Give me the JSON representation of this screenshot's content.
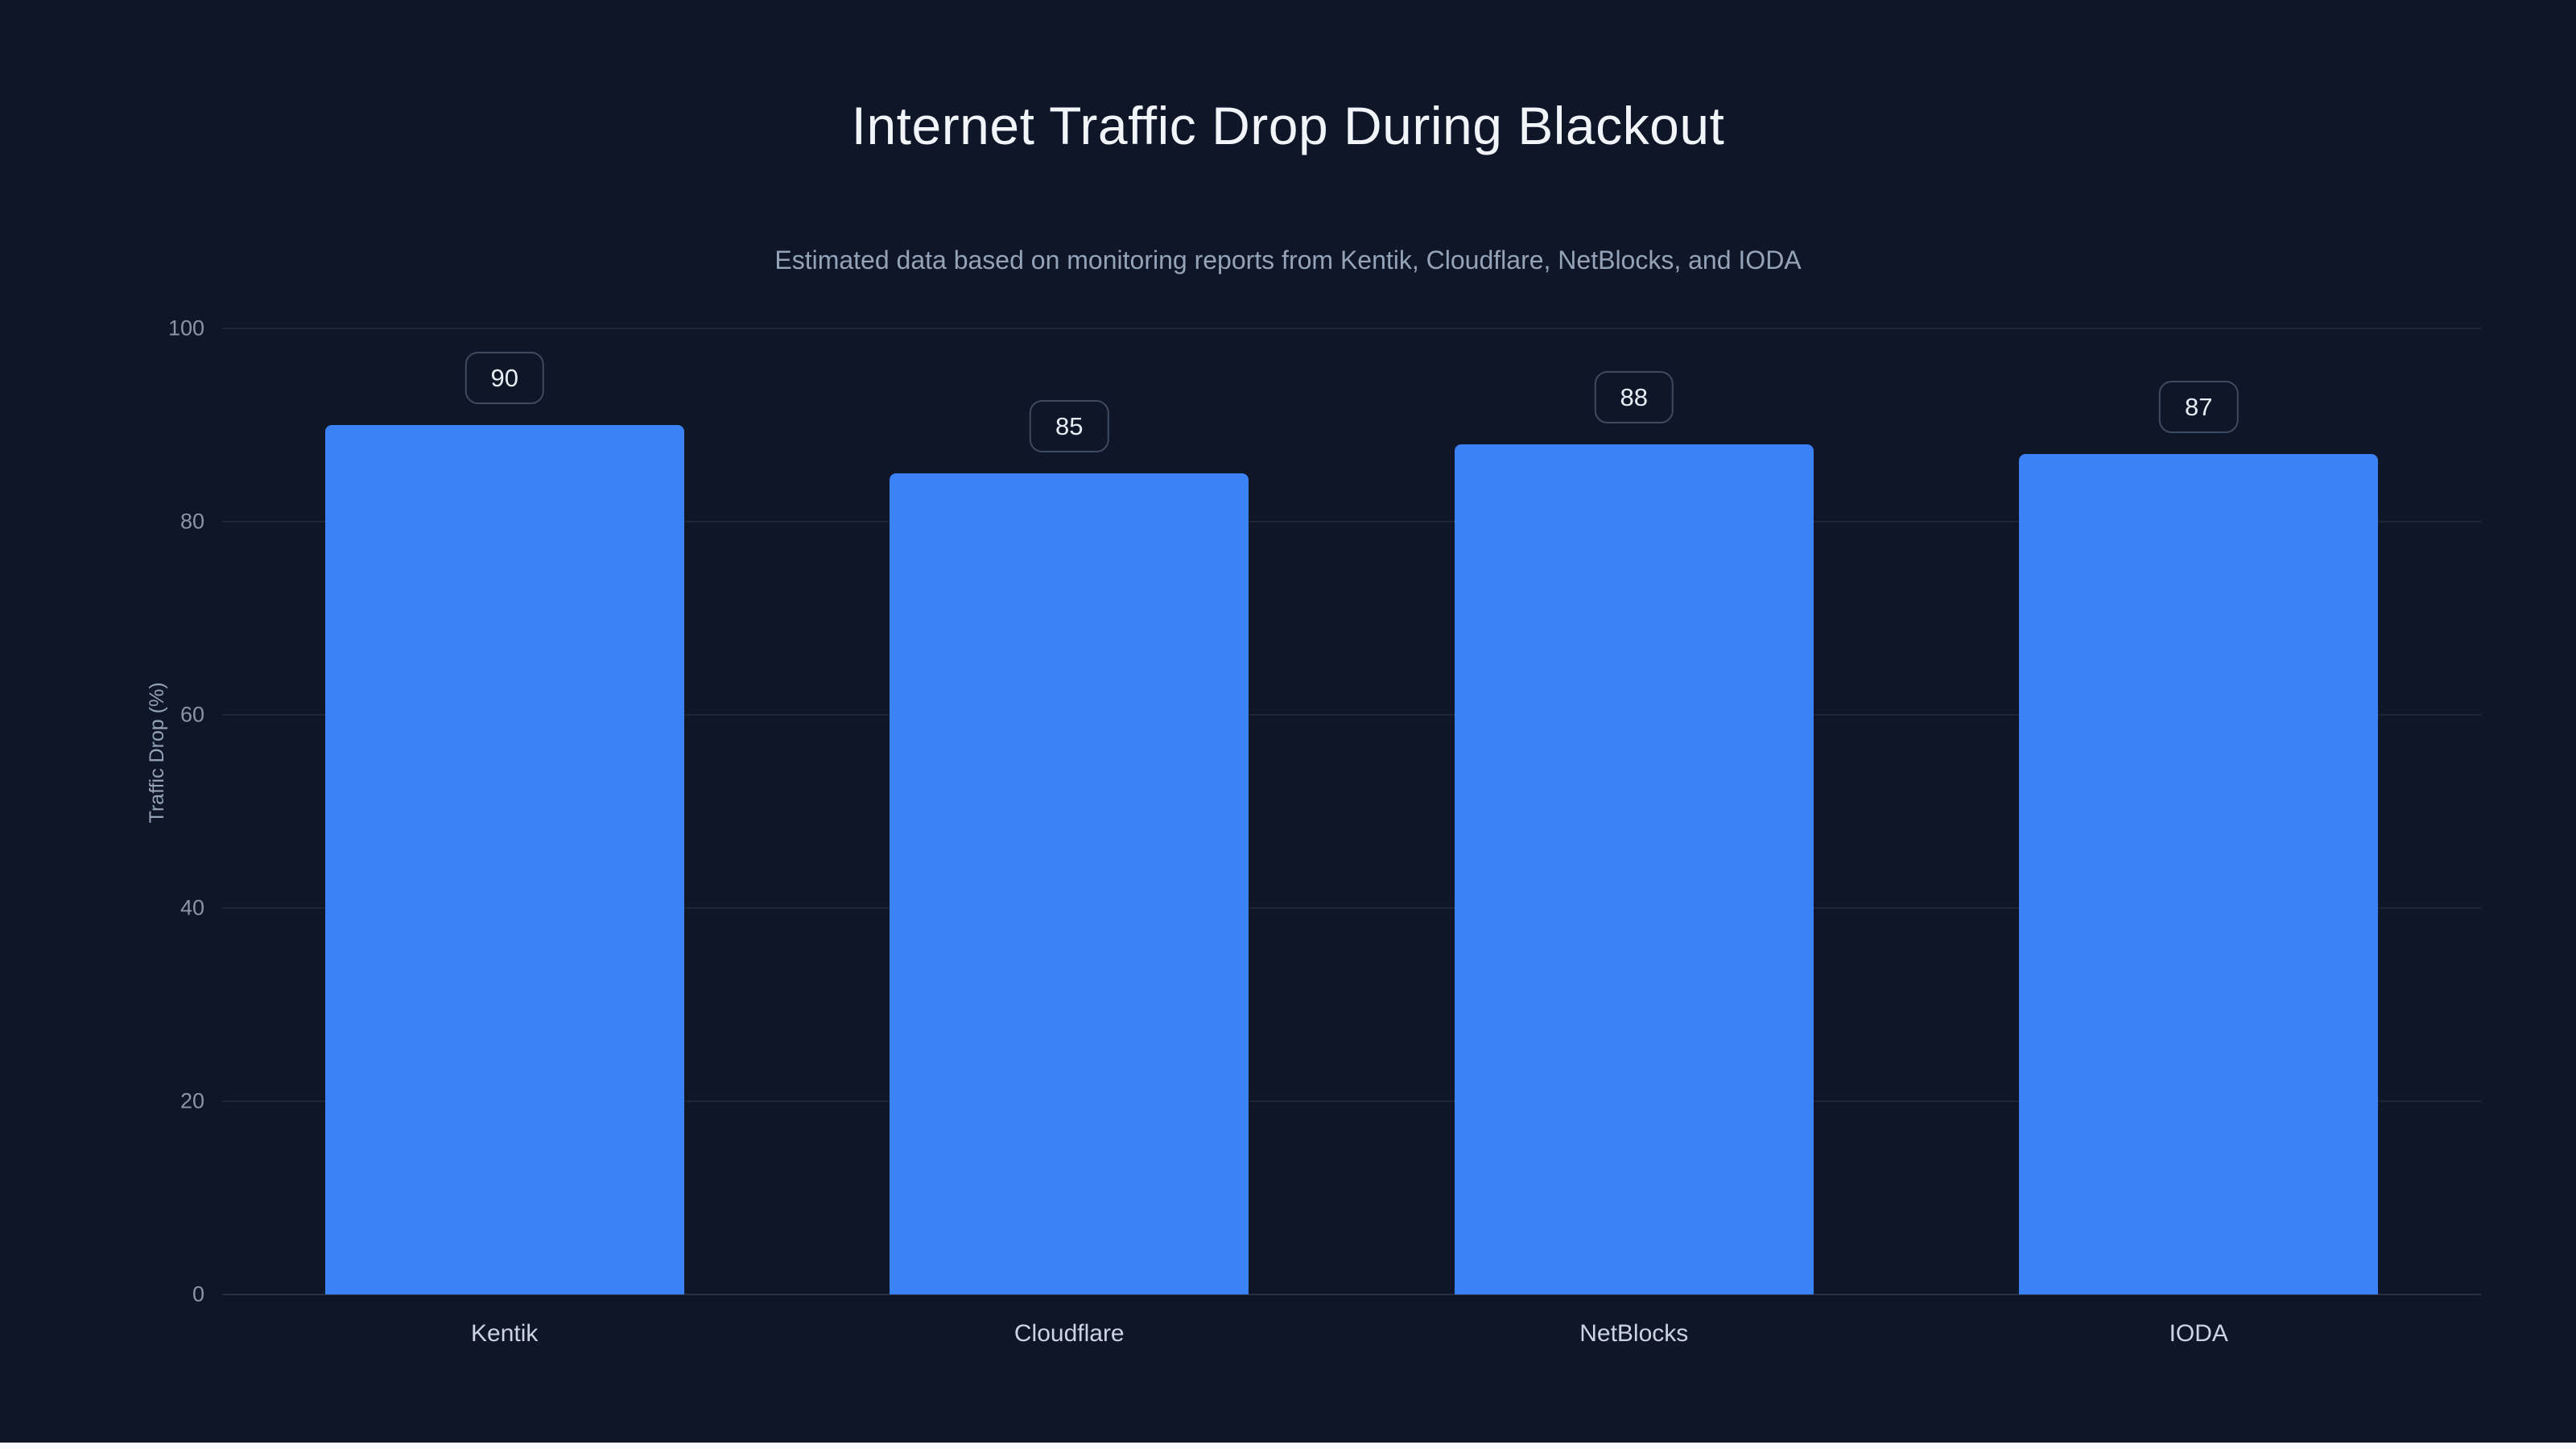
{
  "chart": {
    "title": "Internet Traffic Drop During Blackout",
    "subtitle": "Estimated data based on monitoring reports from Kentik, Cloudflare, NetBlocks, and IODA",
    "ylabel": "Traffic Drop (%)"
  },
  "chart_data": {
    "type": "bar",
    "title": "Internet Traffic Drop During Blackout",
    "subtitle": "Estimated data based on monitoring reports from Kentik, Cloudflare, NetBlocks, and IODA",
    "categories": [
      "Kentik",
      "Cloudflare",
      "NetBlocks",
      "IODA"
    ],
    "values": [
      90,
      85,
      88,
      87
    ],
    "xlabel": "",
    "ylabel": "Traffic Drop (%)",
    "ylim": [
      0,
      100
    ],
    "yticks": [
      0,
      20,
      40,
      60,
      80,
      100
    ],
    "grid": true,
    "legend": false,
    "bar_color": "#3b82f6",
    "background_color": "#0e1628",
    "value_labels_shown": true
  }
}
